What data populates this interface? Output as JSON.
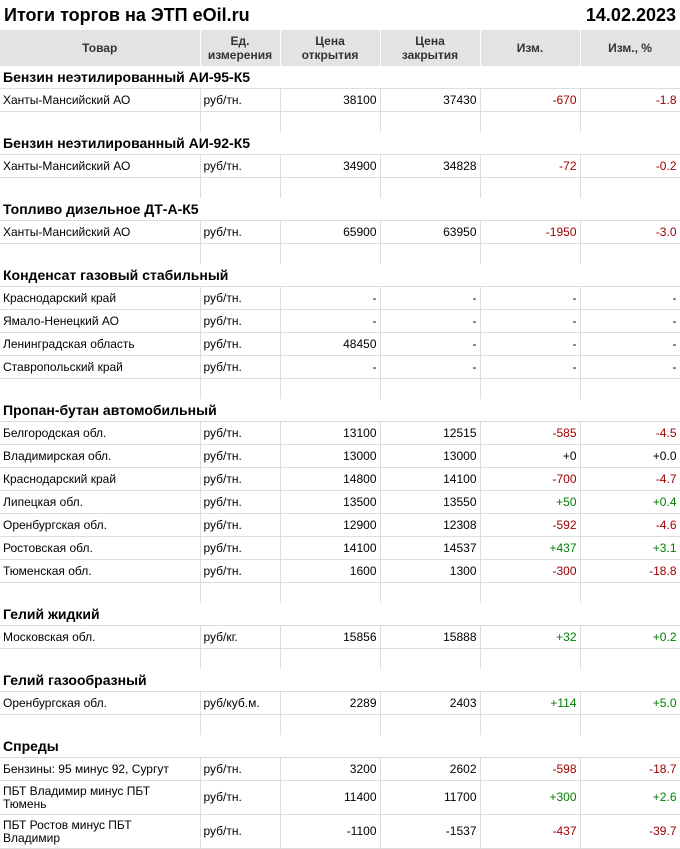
{
  "header": {
    "title": "Итоги торгов на ЭТП eOil.ru",
    "date": "14.02.2023"
  },
  "table": {
    "columns": [
      "Товар",
      "Ед.\nизмерения",
      "Цена\nоткрытия",
      "Цена\nзакрытия",
      "Изм.",
      "Изм., %"
    ],
    "sections": [
      {
        "title": "Бензин неэтилированный АИ-95-К5",
        "rows": [
          [
            "Ханты-Мансийский АО",
            "руб/тн.",
            "38100",
            "37430",
            "-670",
            "-1.8"
          ]
        ]
      },
      {
        "title": "Бензин неэтилированный АИ-92-К5",
        "rows": [
          [
            "Ханты-Мансийский АО",
            "руб/тн.",
            "34900",
            "34828",
            "-72",
            "-0.2"
          ]
        ]
      },
      {
        "title": "Топливо дизельное ДТ-А-К5",
        "rows": [
          [
            "Ханты-Мансийский АО",
            "руб/тн.",
            "65900",
            "63950",
            "-1950",
            "-3.0"
          ]
        ]
      },
      {
        "title": "Конденсат газовый стабильный",
        "rows": [
          [
            "Краснодарский край",
            "руб/тн.",
            "-",
            "-",
            "-",
            "-"
          ],
          [
            "Ямало-Ненецкий АО",
            "руб/тн.",
            "-",
            "-",
            "-",
            "-"
          ],
          [
            "Ленинградская область",
            "руб/тн.",
            "48450",
            "-",
            "-",
            "-"
          ],
          [
            "Ставропольский край",
            "руб/тн.",
            "-",
            "-",
            "-",
            "-"
          ]
        ]
      },
      {
        "title": "Пропан-бутан автомобильный",
        "rows": [
          [
            "Белгородская обл.",
            "руб/тн.",
            "13100",
            "12515",
            "-585",
            "-4.5"
          ],
          [
            "Владимирская обл.",
            "руб/тн.",
            "13000",
            "13000",
            "+0",
            "+0.0"
          ],
          [
            "Краснодарский край",
            "руб/тн.",
            "14800",
            "14100",
            "-700",
            "-4.7"
          ],
          [
            "Липецкая обл.",
            "руб/тн.",
            "13500",
            "13550",
            "+50",
            "+0.4"
          ],
          [
            "Оренбургская обл.",
            "руб/тн.",
            "12900",
            "12308",
            "-592",
            "-4.6"
          ],
          [
            "Ростовская обл.",
            "руб/тн.",
            "14100",
            "14537",
            "+437",
            "+3.1"
          ],
          [
            "Тюменская обл.",
            "руб/тн.",
            "1600",
            "1300",
            "-300",
            "-18.8"
          ]
        ]
      },
      {
        "title": "Гелий жидкий",
        "rows": [
          [
            "Московская обл.",
            "руб/кг.",
            "15856",
            "15888",
            "+32",
            "+0.2"
          ]
        ]
      },
      {
        "title": "Гелий газообразный",
        "rows": [
          [
            "Оренбургская обл.",
            "руб/куб.м.",
            "2289",
            "2403",
            "+114",
            "+5.0"
          ]
        ]
      },
      {
        "title": "Спреды",
        "rows": [
          [
            "Бензины: 95 минус 92, Сургут",
            "руб/тн.",
            "3200",
            "2602",
            "-598",
            "-18.7"
          ],
          [
            "ПБТ Владимир минус ПБТ\nТюмень",
            "руб/тн.",
            "11400",
            "11700",
            "+300",
            "+2.6"
          ],
          [
            "ПБТ Ростов минус ПБТ\nВладимир",
            "руб/тн.",
            "-1100",
            "-1537",
            "-437",
            "-39.7"
          ]
        ]
      }
    ]
  }
}
